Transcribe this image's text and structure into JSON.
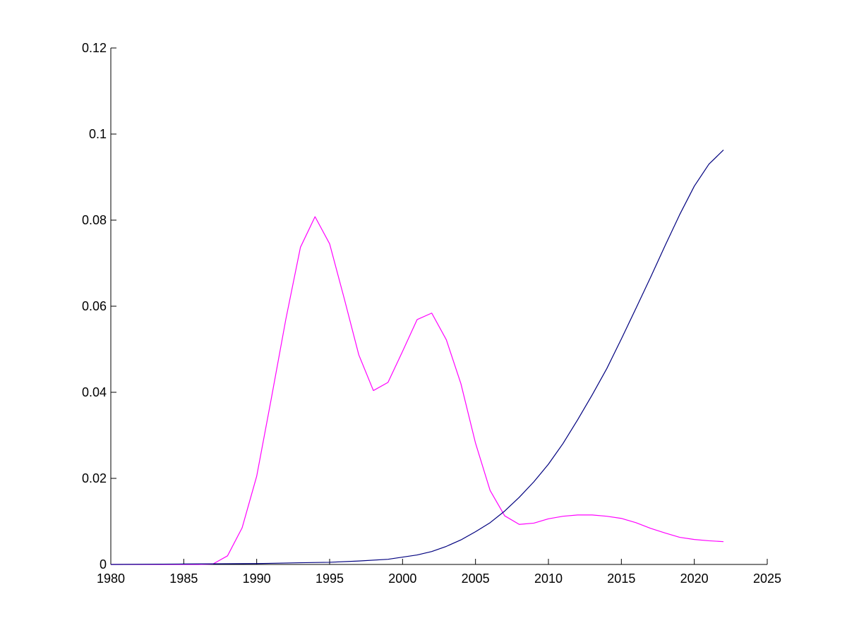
{
  "chart_data": {
    "type": "line",
    "title": "",
    "xlabel": "",
    "ylabel": "",
    "xlim": [
      1980,
      2025
    ],
    "ylim": [
      0,
      0.12
    ],
    "xticks": [
      1980,
      1985,
      1990,
      1995,
      2000,
      2005,
      2010,
      2015,
      2020,
      2025
    ],
    "xtick_labels": [
      "1980",
      "1985",
      "1990",
      "1995",
      "2000",
      "2005",
      "2010",
      "2015",
      "2020",
      "2025"
    ],
    "yticks": [
      0,
      0.02,
      0.04,
      0.06,
      0.08,
      0.1,
      0.12
    ],
    "ytick_labels": [
      "0",
      "0.02",
      "0.04",
      "0.06",
      "0.08",
      "0.1",
      "0.12"
    ],
    "grid": false,
    "legend": "none",
    "series": [
      {
        "color": "#ff00ff",
        "x": [
          1980,
          1985,
          1986,
          1987,
          1988,
          1989,
          1990,
          1991,
          1992,
          1993,
          1994,
          1995,
          1996,
          1997,
          1998,
          1999,
          2000,
          2001,
          2002,
          2003,
          2004,
          2005,
          2006,
          2007,
          2008,
          2009,
          2010,
          2011,
          2012,
          2013,
          2014,
          2015,
          2016,
          2017,
          2018,
          2019,
          2020,
          2021,
          2022
        ],
        "y": [
          0,
          0,
          0,
          0.0001,
          0.002,
          0.0085,
          0.0205,
          0.0385,
          0.057,
          0.0737,
          0.0808,
          0.0745,
          0.0618,
          0.0487,
          0.0404,
          0.0423,
          0.0495,
          0.0569,
          0.0584,
          0.0522,
          0.042,
          0.0282,
          0.0172,
          0.0113,
          0.0093,
          0.0096,
          0.0106,
          0.0112,
          0.0115,
          0.0115,
          0.0112,
          0.0107,
          0.0097,
          0.0084,
          0.0073,
          0.0063,
          0.0058,
          0.0055,
          0.0053
        ]
      },
      {
        "color": "#00007f",
        "x": [
          1980,
          1985,
          1990,
          1993,
          1995,
          1997,
          1999,
          2001,
          2002,
          2003,
          2004,
          2005,
          2006,
          2007,
          2008,
          2009,
          2010,
          2011,
          2012,
          2013,
          2014,
          2015,
          2016,
          2017,
          2018,
          2019,
          2020,
          2021,
          2022
        ],
        "y": [
          0,
          0.0001,
          0.0002,
          0.0004,
          0.0005,
          0.0008,
          0.0012,
          0.0022,
          0.003,
          0.0042,
          0.0057,
          0.0076,
          0.0097,
          0.0124,
          0.0156,
          0.0192,
          0.0233,
          0.0281,
          0.0336,
          0.0394,
          0.0455,
          0.0524,
          0.0595,
          0.0667,
          0.0741,
          0.0813,
          0.0879,
          0.093,
          0.0963
        ]
      }
    ]
  }
}
